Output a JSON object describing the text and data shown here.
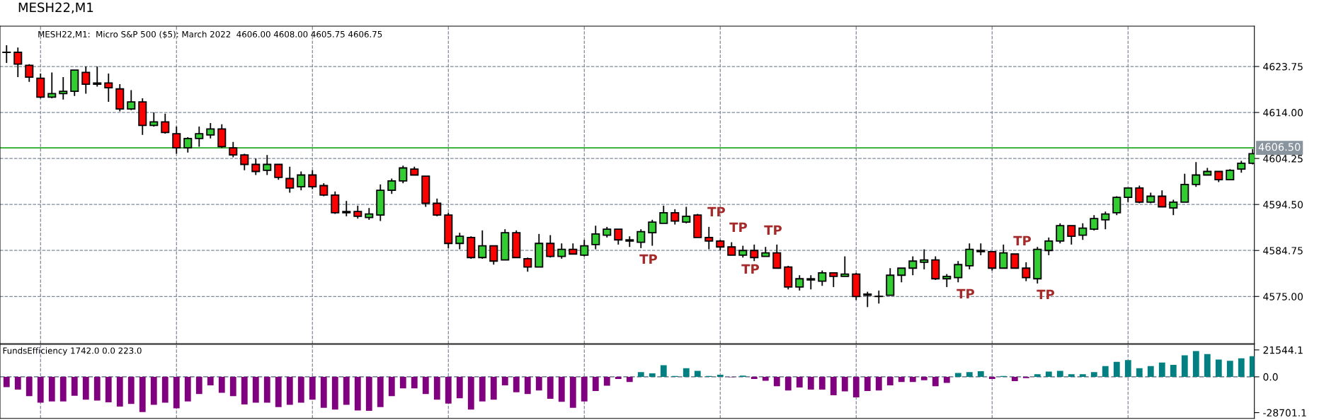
{
  "chart_data": [
    {
      "type": "candlestick",
      "title": "MESH22,M1",
      "subtitle": "MESH22,M1:  Micro S&P 500 ($5): March 2022  4606.00 4608.00 4605.75 4606.75",
      "categories": [
        null,
        null,
        null,
        null,
        null,
        null,
        null,
        null,
        null,
        null,
        null,
        null,
        null,
        null,
        null,
        null,
        null,
        null,
        null,
        null,
        null,
        null,
        null,
        null,
        null,
        null,
        null,
        null,
        null,
        null,
        null,
        null,
        null,
        null,
        null,
        null,
        null,
        null,
        null,
        null,
        null,
        null,
        null,
        null,
        null,
        null,
        null,
        null,
        null,
        null,
        null,
        null,
        null,
        null,
        null,
        null,
        null,
        null,
        null,
        null,
        null,
        null,
        null,
        null,
        null,
        null,
        null,
        null,
        null,
        null,
        null,
        null,
        null,
        null,
        null,
        null,
        null,
        null,
        null,
        null,
        null,
        null,
        null,
        null,
        null,
        null,
        null,
        null,
        null,
        null,
        null,
        null,
        null,
        null,
        null,
        null,
        null,
        null,
        null,
        null,
        null,
        null,
        null,
        null,
        null,
        null,
        null,
        null,
        null,
        null,
        null
      ],
      "ohlc": [
        [
          4626.75,
          4628.25,
          4624.5,
          4626.75
        ],
        [
          4626.75,
          4627.75,
          4621.5,
          4624.25
        ],
        [
          4624.0,
          4624.25,
          4620.5,
          4621.5
        ],
        [
          4621.25,
          4622.25,
          4617.0,
          4617.25
        ],
        [
          4617.25,
          4622.5,
          4617.0,
          4618.0
        ],
        [
          4618.0,
          4621.5,
          4616.75,
          4618.5
        ],
        [
          4618.5,
          4623.0,
          4617.5,
          4623.0
        ],
        [
          4622.5,
          4623.75,
          4618.0,
          4620.0
        ],
        [
          4620.0,
          4623.75,
          4619.5,
          4620.25
        ],
        [
          4620.25,
          4622.25,
          4616.25,
          4619.25
        ],
        [
          4619.0,
          4620.0,
          4614.25,
          4614.75
        ],
        [
          4614.75,
          4618.75,
          4614.5,
          4616.25
        ],
        [
          4616.25,
          4617.0,
          4609.25,
          4611.25
        ],
        [
          4611.25,
          4614.0,
          4611.0,
          4612.0
        ],
        [
          4612.0,
          4613.75,
          4609.5,
          4609.75
        ],
        [
          4609.5,
          4611.0,
          4605.25,
          4606.5
        ],
        [
          4606.5,
          4608.75,
          4605.5,
          4608.5
        ],
        [
          4608.5,
          4611.0,
          4606.75,
          4609.5
        ],
        [
          4609.25,
          4611.75,
          4608.5,
          4610.5
        ],
        [
          4610.5,
          4611.5,
          4606.5,
          4606.75
        ],
        [
          4606.5,
          4607.75,
          4604.5,
          4605.0
        ],
        [
          4605.0,
          4605.25,
          4601.75,
          4603.0
        ],
        [
          4603.0,
          4604.25,
          4600.75,
          4601.5
        ],
        [
          4601.75,
          4605.0,
          4600.75,
          4603.0
        ],
        [
          4603.0,
          4603.0,
          4599.75,
          4600.25
        ],
        [
          4600.0,
          4602.5,
          4597.0,
          4598.0
        ],
        [
          4598.25,
          4601.5,
          4597.5,
          4600.75
        ],
        [
          4600.75,
          4601.75,
          4597.75,
          4598.25
        ],
        [
          4598.5,
          4599.0,
          4596.25,
          4596.5
        ],
        [
          4596.5,
          4597.25,
          4592.5,
          4592.75
        ],
        [
          4592.75,
          4595.25,
          4592.0,
          4593.0
        ],
        [
          4593.0,
          4594.25,
          4591.5,
          4592.0
        ],
        [
          4591.75,
          4593.75,
          4591.25,
          4592.5
        ],
        [
          4592.25,
          4598.75,
          4591.0,
          4597.5
        ],
        [
          4597.5,
          4600.0,
          4596.75,
          4599.5
        ],
        [
          4599.5,
          4602.75,
          4599.0,
          4602.25
        ],
        [
          4602.0,
          4602.5,
          4600.75,
          4600.75
        ],
        [
          4600.5,
          4600.5,
          4594.0,
          4594.75
        ],
        [
          4594.75,
          4595.75,
          4592.0,
          4592.25
        ],
        [
          4592.25,
          4592.75,
          4585.25,
          4586.25
        ],
        [
          4586.25,
          4588.5,
          4585.0,
          4587.75
        ],
        [
          4587.5,
          4587.75,
          4583.0,
          4583.25
        ],
        [
          4583.25,
          4589.0,
          4583.0,
          4585.75
        ],
        [
          4585.75,
          4585.75,
          4581.75,
          4582.5
        ],
        [
          4582.75,
          4589.25,
          4582.75,
          4588.5
        ],
        [
          4588.5,
          4589.0,
          4583.25,
          4583.25
        ],
        [
          4583.0,
          4583.25,
          4580.25,
          4581.25
        ],
        [
          4581.25,
          4588.25,
          4581.25,
          4586.25
        ],
        [
          4586.25,
          4588.0,
          4583.25,
          4583.5
        ],
        [
          4583.5,
          4586.25,
          4583.0,
          4585.0
        ],
        [
          4585.0,
          4586.25,
          4584.0,
          4584.0
        ],
        [
          4583.75,
          4587.0,
          4583.5,
          4585.75
        ],
        [
          4586.0,
          4590.0,
          4585.0,
          4588.25
        ],
        [
          4588.0,
          4589.75,
          4587.5,
          4589.25
        ],
        [
          4589.25,
          4589.25,
          4586.0,
          4587.0
        ],
        [
          4587.0,
          4587.75,
          4585.5,
          4586.75
        ],
        [
          4586.5,
          4589.25,
          4585.25,
          4588.75
        ],
        [
          4588.5,
          4591.25,
          4585.75,
          4590.75
        ],
        [
          4590.5,
          4594.25,
          4590.5,
          4592.75
        ],
        [
          4592.75,
          4593.5,
          4590.25,
          4591.0
        ],
        [
          4590.75,
          4594.0,
          4590.5,
          4592.0
        ],
        [
          4592.25,
          4592.5,
          4587.5,
          4587.5
        ],
        [
          4587.5,
          4589.75,
          4585.0,
          4586.75
        ],
        [
          4586.75,
          4587.0,
          4584.75,
          4585.5
        ],
        [
          4585.5,
          4586.5,
          4583.75,
          4583.75
        ],
        [
          4583.75,
          4585.75,
          4583.25,
          4584.75
        ],
        [
          4584.75,
          4586.0,
          4582.5,
          4583.25
        ],
        [
          4583.5,
          4585.5,
          4583.5,
          4584.25
        ],
        [
          4584.25,
          4586.0,
          4581.0,
          4581.0
        ],
        [
          4581.25,
          4581.5,
          4576.5,
          4577.0
        ],
        [
          4577.0,
          4579.5,
          4576.25,
          4578.75
        ],
        [
          4578.75,
          4579.5,
          4576.5,
          4578.5
        ],
        [
          4578.25,
          4580.5,
          4577.25,
          4580.0
        ],
        [
          4580.0,
          4580.0,
          4577.0,
          4579.25
        ],
        [
          4579.25,
          4583.5,
          4579.25,
          4579.75
        ],
        [
          4579.75,
          4580.0,
          4574.25,
          4575.0
        ],
        [
          4575.25,
          4576.0,
          4572.75,
          4575.5
        ],
        [
          4575.0,
          4576.25,
          4573.5,
          4575.0
        ],
        [
          4575.25,
          4581.0,
          4575.25,
          4579.5
        ],
        [
          4579.5,
          4581.0,
          4578.0,
          4581.0
        ],
        [
          4581.0,
          4583.5,
          4579.5,
          4582.5
        ],
        [
          4582.25,
          4585.0,
          4580.75,
          4582.75
        ],
        [
          4582.75,
          4583.5,
          4578.5,
          4578.75
        ],
        [
          4578.75,
          4579.75,
          4577.0,
          4579.25
        ],
        [
          4579.0,
          4582.5,
          4578.0,
          4581.75
        ],
        [
          4581.5,
          4586.25,
          4580.75,
          4585.0
        ],
        [
          4584.75,
          4586.25,
          4583.75,
          4584.5
        ],
        [
          4584.5,
          4584.5,
          4580.5,
          4581.0
        ],
        [
          4581.0,
          4586.0,
          4581.0,
          4584.25
        ],
        [
          4584.0,
          4584.0,
          4581.0,
          4581.0
        ],
        [
          4581.0,
          4582.25,
          4578.25,
          4579.0
        ],
        [
          4578.75,
          4585.5,
          4577.75,
          4585.0
        ],
        [
          4584.75,
          4587.5,
          4583.75,
          4586.75
        ],
        [
          4586.75,
          4590.5,
          4586.25,
          4590.0
        ],
        [
          4590.0,
          4590.0,
          4586.0,
          4587.75
        ],
        [
          4588.0,
          4590.5,
          4587.0,
          4589.5
        ],
        [
          4589.25,
          4592.25,
          4589.0,
          4591.5
        ],
        [
          4591.25,
          4593.0,
          4589.25,
          4592.5
        ],
        [
          4592.75,
          4596.25,
          4592.25,
          4596.0
        ],
        [
          4596.0,
          4598.0,
          4595.0,
          4598.0
        ],
        [
          4598.0,
          4598.5,
          4594.75,
          4595.0
        ],
        [
          4595.0,
          4597.0,
          4594.75,
          4596.25
        ],
        [
          4596.25,
          4597.5,
          4594.0,
          4594.0
        ],
        [
          4593.75,
          4595.5,
          4592.25,
          4595.0
        ],
        [
          4595.0,
          4601.0,
          4595.0,
          4598.75
        ],
        [
          4598.75,
          4603.5,
          4598.25,
          4600.75
        ],
        [
          4600.75,
          4602.25,
          4600.75,
          4601.5
        ],
        [
          4601.5,
          4601.5,
          4599.25,
          4599.75
        ],
        [
          4599.75,
          4602.0,
          4599.75,
          4601.75
        ],
        [
          4602.0,
          4603.75,
          4601.25,
          4603.25
        ],
        [
          4603.25,
          4606.25,
          4603.0,
          4605.25
        ]
      ],
      "colors": [
        "#32cd32",
        "#ff0000",
        "#ff0000",
        "#ff0000",
        "#32cd32",
        "#32cd32",
        "#32cd32",
        "#ff0000",
        "#32cd32",
        "#ff0000",
        "#ff0000",
        "#32cd32",
        "#ff0000",
        "#32cd32",
        "#ff0000",
        "#ff0000",
        "#32cd32",
        "#32cd32",
        "#32cd32",
        "#ff0000",
        "#ff0000",
        "#ff0000",
        "#ff0000",
        "#32cd32",
        "#ff0000",
        "#ff0000",
        "#32cd32",
        "#ff0000",
        "#ff0000",
        "#ff0000",
        "#32cd32",
        "#ff0000",
        "#32cd32",
        "#32cd32",
        "#32cd32",
        "#32cd32",
        "#ff0000",
        "#ff0000",
        "#ff0000",
        "#ff0000",
        "#32cd32",
        "#ff0000",
        "#32cd32",
        "#ff0000",
        "#32cd32",
        "#ff0000",
        "#ff0000",
        "#32cd32",
        "#ff0000",
        "#32cd32",
        "#ff0000",
        "#32cd32",
        "#32cd32",
        "#32cd32",
        "#ff0000",
        "#ff0000",
        "#32cd32",
        "#32cd32",
        "#32cd32",
        "#ff0000",
        "#32cd32",
        "#ff0000",
        "#ff0000",
        "#ff0000",
        "#ff0000",
        "#32cd32",
        "#ff0000",
        "#32cd32",
        "#ff0000",
        "#ff0000",
        "#32cd32",
        "#ff0000",
        "#32cd32",
        "#ff0000",
        "#32cd32",
        "#ff0000",
        "#32cd32",
        "#32cd32",
        "#32cd32",
        "#32cd32",
        "#32cd32",
        "#32cd32",
        "#ff0000",
        "#32cd32",
        "#32cd32",
        "#32cd32",
        "#ff0000",
        "#ff0000",
        "#32cd32",
        "#ff0000",
        "#ff0000",
        "#32cd32",
        "#32cd32",
        "#32cd32",
        "#ff0000",
        "#32cd32",
        "#32cd32",
        "#32cd32",
        "#32cd32",
        "#32cd32",
        "#ff0000",
        "#32cd32",
        "#ff0000",
        "#32cd32",
        "#32cd32",
        "#32cd32",
        "#32cd32",
        "#ff0000",
        "#32cd32",
        "#32cd32",
        "#32cd32"
      ],
      "ylim": [
        4565.0,
        4632.3
      ],
      "yticks": [
        {
          "value": 4623.75,
          "label": "4623.75"
        },
        {
          "value": 4614.0,
          "label": "4614.00"
        },
        {
          "value": 4604.25,
          "label": "4604.25"
        },
        {
          "value": 4594.5,
          "label": "4594.50"
        },
        {
          "value": 4584.75,
          "label": "4584.75"
        },
        {
          "value": 4575.0,
          "label": "4575.00"
        }
      ],
      "ref_lines": [
        {
          "axis": "y",
          "value": 4606.5,
          "label": "4606.50",
          "color": "#22aa22"
        }
      ],
      "annotations": [
        "TP",
        "TP",
        "TP",
        "TP",
        "TP",
        "TP",
        "TP",
        "TP"
      ],
      "grid": true,
      "tick_labels": "y"
    },
    {
      "type": "bar",
      "title": "FundsEfficiency 1742.0 0.0 223.0",
      "categories": [
        null,
        null,
        null,
        null,
        null,
        null,
        null,
        null,
        null,
        null,
        null,
        null,
        null,
        null,
        null,
        null,
        null,
        null,
        null,
        null,
        null,
        null,
        null,
        null,
        null,
        null,
        null,
        null,
        null,
        null,
        null,
        null,
        null,
        null,
        null,
        null,
        null,
        null,
        null,
        null,
        null,
        null,
        null,
        null,
        null,
        null,
        null,
        null,
        null,
        null,
        null,
        null,
        null,
        null,
        null,
        null,
        null,
        null,
        null,
        null,
        null,
        null,
        null,
        null,
        null,
        null,
        null,
        null,
        null,
        null,
        null,
        null,
        null,
        null,
        null,
        null,
        null,
        null,
        null,
        null,
        null,
        null,
        null,
        null,
        null,
        null,
        null,
        null,
        null,
        null,
        null,
        null,
        null,
        null,
        null,
        null,
        null,
        null,
        null,
        null,
        null,
        null,
        null,
        null,
        null,
        null,
        null,
        null,
        null,
        null,
        null
      ],
      "values": [
        -8300,
        -10300,
        -15500,
        -20700,
        -19700,
        -19700,
        -15200,
        -18300,
        -19000,
        -20400,
        -23800,
        -21700,
        -28300,
        -22400,
        -20700,
        -25200,
        -19700,
        -13800,
        -6900,
        -12800,
        -15500,
        -22100,
        -20700,
        -20700,
        -24200,
        -22400,
        -20700,
        -18300,
        -24800,
        -26200,
        -22400,
        -26900,
        -27200,
        -24200,
        -15500,
        -9300,
        -9300,
        -13800,
        -18300,
        -21400,
        -17200,
        -26200,
        -19700,
        -18300,
        -6900,
        -12400,
        -13800,
        -11000,
        -17600,
        -20000,
        -24800,
        -19700,
        -11400,
        -7200,
        -1700,
        -4200,
        3800,
        2800,
        9300,
        700,
        6900,
        4800,
        700,
        1700,
        -400,
        1000,
        -1700,
        -3100,
        -7600,
        -11000,
        -8600,
        -10300,
        -10300,
        -14800,
        -11700,
        -16500,
        -11400,
        -11000,
        -6900,
        -4200,
        -4200,
        -2800,
        -7600,
        -4800,
        3100,
        3800,
        4500,
        -1700,
        700,
        -3400,
        -1000,
        2000,
        4200,
        4800,
        2000,
        2000,
        3800,
        8600,
        12000,
        13400,
        6900,
        8600,
        11400,
        9600,
        17200,
        20600,
        18200,
        13800,
        12800,
        14800,
        16500
      ],
      "colors": [
        "#800080",
        "#800080",
        "#800080",
        "#800080",
        "#800080",
        "#800080",
        "#800080",
        "#800080",
        "#800080",
        "#800080",
        "#800080",
        "#800080",
        "#800080",
        "#800080",
        "#800080",
        "#800080",
        "#800080",
        "#800080",
        "#800080",
        "#800080",
        "#800080",
        "#800080",
        "#800080",
        "#800080",
        "#800080",
        "#800080",
        "#800080",
        "#800080",
        "#800080",
        "#800080",
        "#800080",
        "#800080",
        "#800080",
        "#800080",
        "#800080",
        "#800080",
        "#800080",
        "#800080",
        "#800080",
        "#800080",
        "#800080",
        "#800080",
        "#800080",
        "#800080",
        "#800080",
        "#800080",
        "#800080",
        "#800080",
        "#800080",
        "#800080",
        "#800080",
        "#800080",
        "#800080",
        "#800080",
        "#800080",
        "#800080",
        "#008080",
        "#008080",
        "#008080",
        "#008080",
        "#008080",
        "#008080",
        "#008080",
        "#008080",
        "#800080",
        "#008080",
        "#800080",
        "#800080",
        "#800080",
        "#800080",
        "#800080",
        "#800080",
        "#800080",
        "#800080",
        "#800080",
        "#800080",
        "#800080",
        "#800080",
        "#800080",
        "#800080",
        "#800080",
        "#800080",
        "#800080",
        "#800080",
        "#008080",
        "#008080",
        "#008080",
        "#800080",
        "#008080",
        "#800080",
        "#800080",
        "#008080",
        "#008080",
        "#008080",
        "#008080",
        "#008080",
        "#008080",
        "#008080",
        "#008080",
        "#008080",
        "#008080",
        "#008080",
        "#008080",
        "#008080",
        "#008080",
        "#008080",
        "#008080",
        "#008080",
        "#008080",
        "#008080",
        "#008080"
      ],
      "ylim": [
        -33300,
        26000
      ],
      "yticks": [
        {
          "value": 21544.1,
          "label": "21544.1"
        },
        {
          "value": 0,
          "label": "0.0"
        },
        {
          "value": -28701.1,
          "label": "-28701.1"
        }
      ],
      "ref_lines": [
        {
          "axis": "y",
          "value": 0,
          "color": "#7f8a99",
          "line_style": "dashed"
        }
      ],
      "grid": "x",
      "tick_labels": "y"
    }
  ]
}
